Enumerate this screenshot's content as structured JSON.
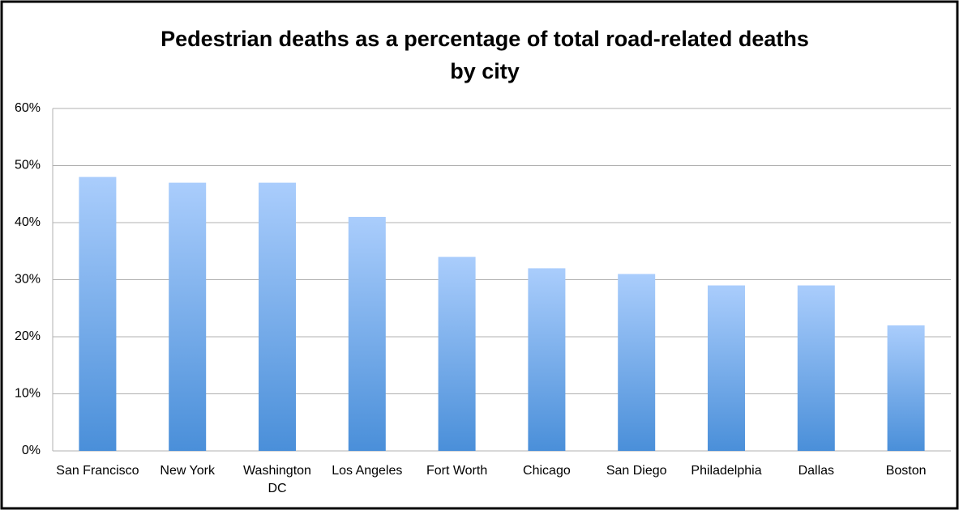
{
  "chart_data": {
    "type": "bar",
    "title": [
      "Pedestrian deaths as a percentage of total road-related deaths",
      "by city"
    ],
    "categories": [
      "San Francisco",
      "New York",
      "Washington DC",
      "Los Angeles",
      "Fort Worth",
      "Chicago",
      "San Diego",
      "Philadelphia",
      "Dallas",
      "Boston"
    ],
    "values": [
      48,
      47,
      47,
      41,
      34,
      32,
      31,
      29,
      29,
      22
    ],
    "color": [
      "#aacdfc",
      "#4a8fd9"
    ],
    "ylim": [
      0,
      60
    ],
    "yticks": [
      {
        "value": 0,
        "label": "0%"
      },
      {
        "value": 10,
        "label": "10%"
      },
      {
        "value": 20,
        "label": "20%"
      },
      {
        "value": 30,
        "label": "30%"
      },
      {
        "value": 40,
        "label": "40%"
      },
      {
        "value": 50,
        "label": "50%"
      },
      {
        "value": 60,
        "label": "60%"
      }
    ],
    "grid": true
  }
}
